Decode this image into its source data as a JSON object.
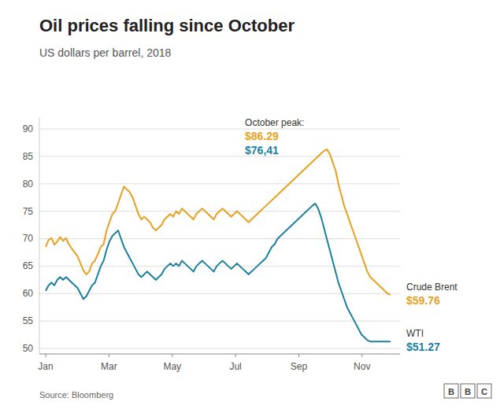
{
  "chart_data": {
    "type": "line",
    "title": "Oil prices falling since October",
    "subtitle": "US dollars per barrel, 2018",
    "source": "Source: Bloomberg",
    "logo": "BBC",
    "annotations": [
      "October peak:",
      "$86.29",
      "$76,41",
      "$59.76",
      "$51.27"
    ],
    "grid": true,
    "xlim": [
      -0.2,
      11.2
    ],
    "xticks": [
      {
        "value": 0,
        "label": "Jan"
      },
      {
        "value": 2,
        "label": "Mar"
      },
      {
        "value": 4,
        "label": "May"
      },
      {
        "value": 6,
        "label": "Jul"
      },
      {
        "value": 8,
        "label": "Sep"
      },
      {
        "value": 10,
        "label": "Nov"
      }
    ],
    "ylim": [
      49,
      92
    ],
    "yticks": [
      50,
      55,
      60,
      65,
      70,
      75,
      80,
      85,
      90
    ],
    "x": [
      0,
      0.0916,
      0.1832,
      0.2748,
      0.3664,
      0.458,
      0.5496,
      0.6412,
      0.7328,
      0.8244,
      0.916,
      1.0076,
      1.0992,
      1.1908,
      1.2824,
      1.3739,
      1.4655,
      1.5571,
      1.6487,
      1.7403,
      1.8319,
      1.9235,
      2.0151,
      2.1067,
      2.1983,
      2.2899,
      2.3815,
      2.4731,
      2.5647,
      2.6563,
      2.7479,
      2.8395,
      2.9311,
      3.0227,
      3.1143,
      3.2059,
      3.2975,
      3.3891,
      3.4807,
      3.5723,
      3.6639,
      3.7555,
      3.8471,
      3.9387,
      4.0303,
      4.1218,
      4.2134,
      4.305,
      4.3966,
      4.4882,
      4.5798,
      4.6714,
      4.763,
      4.8546,
      4.9462,
      5.0378,
      5.1294,
      5.221,
      5.3126,
      5.4042,
      5.4958,
      5.5874,
      5.679,
      5.7706,
      5.8622,
      5.9538,
      6.0454,
      6.137,
      6.2286,
      6.3202,
      6.4118,
      6.5034,
      6.595,
      6.6866,
      6.7782,
      6.8697,
      6.9613,
      7.0529,
      7.1445,
      7.2361,
      7.3277,
      7.4193,
      7.5109,
      7.6025,
      7.6941,
      7.7857,
      7.8773,
      7.9689,
      8.0605,
      8.1521,
      8.2437,
      8.3353,
      8.4269,
      8.5185,
      8.6101,
      8.7017,
      8.7933,
      8.8849,
      8.9765,
      9.0681,
      9.1597,
      9.2513,
      9.3429,
      9.4345,
      9.5261,
      9.6176,
      9.7092,
      9.8008,
      9.8924,
      9.984,
      10.0756,
      10.1672,
      10.2588,
      10.3504,
      10.442,
      10.5336,
      10.6252,
      10.7168,
      10.8084,
      10.9
    ],
    "series": [
      {
        "name": "Crude Brent",
        "color": "#e8a020",
        "values": [
          68.5,
          69.8,
          70.1,
          68.9,
          69.5,
          70.3,
          69.6,
          70.1,
          69.0,
          68.2,
          67.5,
          66.8,
          65.5,
          64.2,
          63.5,
          64.0,
          65.5,
          66.0,
          67.2,
          68.5,
          69.0,
          71.5,
          73.0,
          74.5,
          75.0,
          76.5,
          78.0,
          79.5,
          79.0,
          78.5,
          77.5,
          76.0,
          74.5,
          73.5,
          74.0,
          73.5,
          73.0,
          72.0,
          71.5,
          72.0,
          72.5,
          73.5,
          74.0,
          74.5,
          74.0,
          75.0,
          74.5,
          75.5,
          75.0,
          74.5,
          74.0,
          73.5,
          74.5,
          75.0,
          75.5,
          75.0,
          74.5,
          74.0,
          73.5,
          74.5,
          75.0,
          75.5,
          75.0,
          74.5,
          74.0,
          74.5,
          75.0,
          74.5,
          74.0,
          73.5,
          73.0,
          73.5,
          74.0,
          74.5,
          75.0,
          75.5,
          76.0,
          76.5,
          77.0,
          77.5,
          78.0,
          78.5,
          79.0,
          79.5,
          80.0,
          80.5,
          81.0,
          81.5,
          82.0,
          82.5,
          83.0,
          83.5,
          84.0,
          84.5,
          85.0,
          85.5,
          86.0,
          86.29,
          85.5,
          84.0,
          82.5,
          80.0,
          78.0,
          76.0,
          74.5,
          73.0,
          71.5,
          70.0,
          68.5,
          67.0,
          65.5,
          64.0,
          63.0,
          62.5,
          62.0,
          61.5,
          61.0,
          60.5,
          60.0,
          59.76
        ]
      },
      {
        "name": "WTI",
        "color": "#1a7fa0",
        "values": [
          60.5,
          61.5,
          62.0,
          61.5,
          62.5,
          63.0,
          62.5,
          63.0,
          62.5,
          62.0,
          61.5,
          61.0,
          60.0,
          59.0,
          59.5,
          60.5,
          61.5,
          62.0,
          63.5,
          65.0,
          66.0,
          68.0,
          69.5,
          70.5,
          71.0,
          71.5,
          70.0,
          68.5,
          67.5,
          66.5,
          65.5,
          64.5,
          63.5,
          63.0,
          63.5,
          64.0,
          63.5,
          63.0,
          62.5,
          63.0,
          63.5,
          64.5,
          65.0,
          65.5,
          65.0,
          65.5,
          65.0,
          66.0,
          65.5,
          65.0,
          64.5,
          64.0,
          65.0,
          65.5,
          66.0,
          65.5,
          65.0,
          64.5,
          64.0,
          65.0,
          65.5,
          66.0,
          65.5,
          65.0,
          64.5,
          65.0,
          65.5,
          65.0,
          64.5,
          64.0,
          63.5,
          64.0,
          64.5,
          65.0,
          65.5,
          66.0,
          66.5,
          67.5,
          68.5,
          69.0,
          70.0,
          70.5,
          71.0,
          71.5,
          72.0,
          72.5,
          73.0,
          73.5,
          74.0,
          74.5,
          75.0,
          75.5,
          76.0,
          76.41,
          75.5,
          74.0,
          72.0,
          70.0,
          68.0,
          66.0,
          64.0,
          62.0,
          60.5,
          59.0,
          57.5,
          56.5,
          55.5,
          54.5,
          53.5,
          52.5,
          52.0,
          51.5,
          51.27,
          51.27,
          51.27,
          51.27,
          51.27,
          51.27,
          51.27,
          51.27
        ]
      }
    ]
  }
}
